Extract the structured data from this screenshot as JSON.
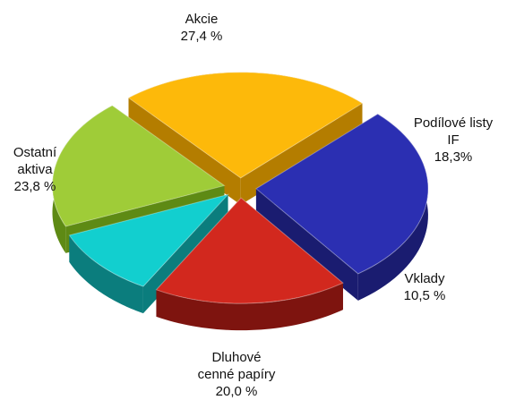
{
  "chart_data": {
    "type": "pie",
    "title": "",
    "slices": [
      {
        "label_lines": [
          "Akcie"
        ],
        "value_text": "27,4 %",
        "value": 27.4,
        "color": "#2b2fb2",
        "side": "#1a1c70"
      },
      {
        "label_lines": [
          "Podílové listy",
          "IF"
        ],
        "value_text": "18,3%",
        "value": 18.3,
        "color": "#d2281e",
        "side": "#7e140f"
      },
      {
        "label_lines": [
          "Vklady"
        ],
        "value_text": "10,5 %",
        "value": 10.5,
        "color": "#12cfcf",
        "side": "#0b7d7d"
      },
      {
        "label_lines": [
          "Dluhové",
          "cenné papíry"
        ],
        "value_text": "20,0 %",
        "value": 20.0,
        "color": "#9fcc38",
        "side": "#5e8a14"
      },
      {
        "label_lines": [
          "Ostatní",
          "aktiva"
        ],
        "value_text": "23,8 %",
        "value": 23.8,
        "color": "#fdb90a",
        "side": "#b47d00"
      }
    ]
  }
}
